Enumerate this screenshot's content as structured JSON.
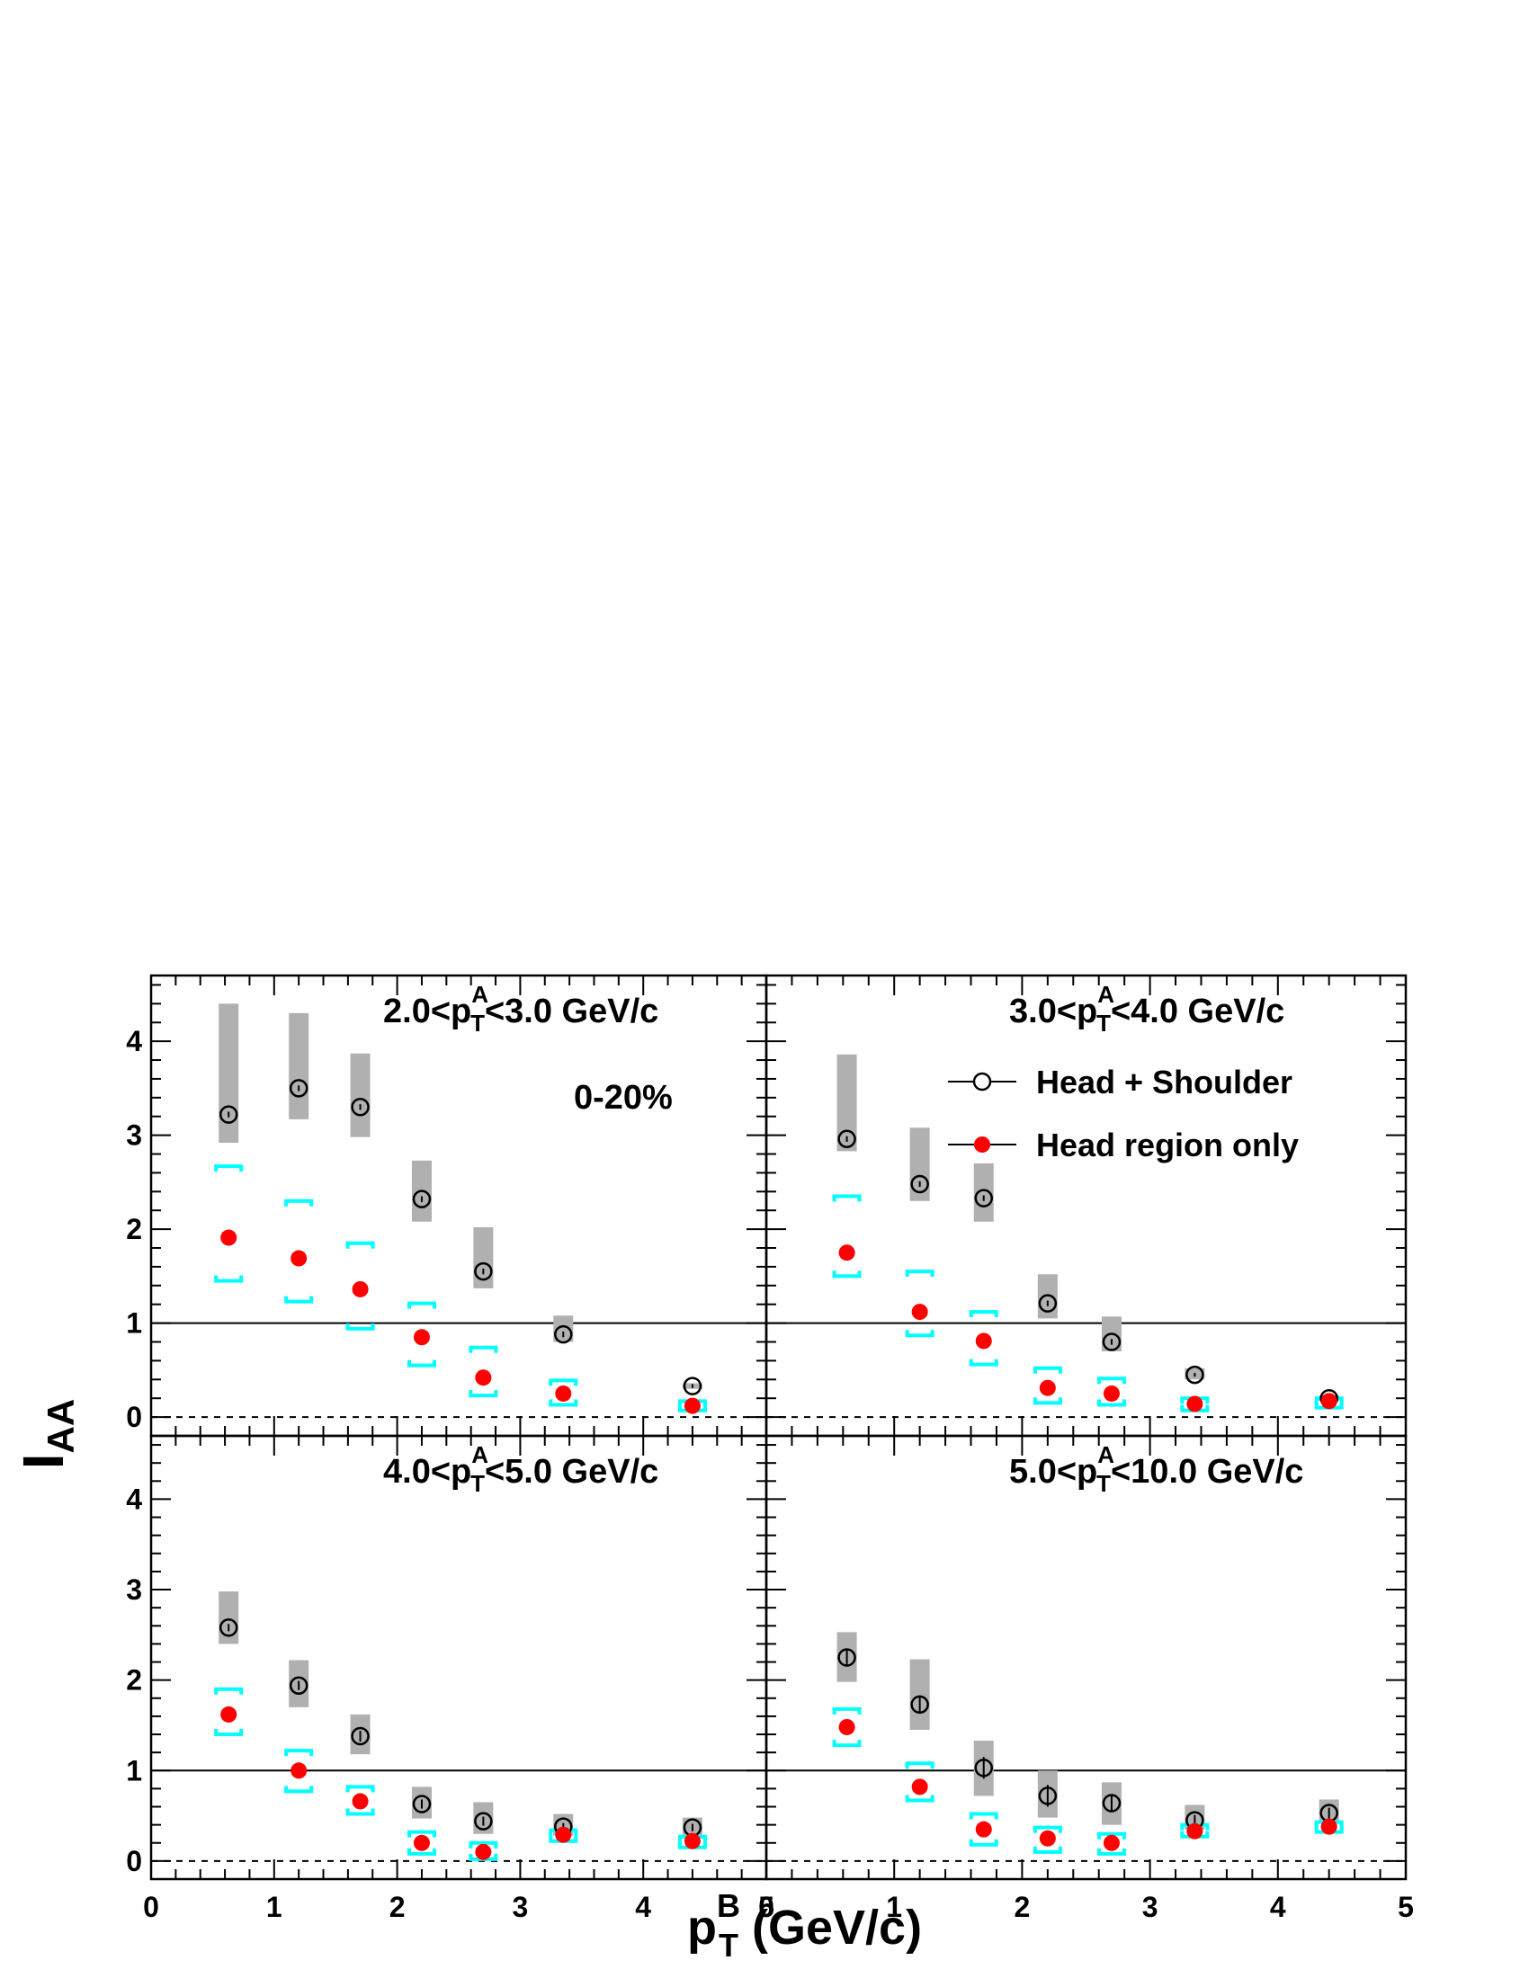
{
  "chart_data": {
    "type": "scatter",
    "xlabel": "p",
    "xlabel_sub": "T",
    "xlabel_sup": "B",
    "xlabel_unit": " (GeV/c)",
    "ylabel": "I",
    "ylabel_sub": "AA",
    "xlim": [
      0,
      5
    ],
    "ylim": [
      -0.2,
      4.7
    ],
    "x_ticks": [
      0,
      1,
      2,
      3,
      4,
      5
    ],
    "y_ticks": [
      0,
      1,
      2,
      3,
      4
    ],
    "reference_line": 1,
    "zero_line_style": "dashed",
    "centrality_label": "0-20%",
    "legend": [
      {
        "label": "Head + Shoulder",
        "marker": "open-circle"
      },
      {
        "label": "Head region only",
        "marker": "filled-circle"
      }
    ],
    "legend_placement": "top-right of upper-right panel",
    "colors": {
      "head_only": "#ff0000",
      "head_only_sys": "#00ffff",
      "head_shoulder_sys": "#b0b0b0",
      "head_shoulder": "#000000"
    },
    "panels": [
      {
        "label_prefix": "2.0<p",
        "label_sub": "T",
        "label_sup": "A",
        "label_suffix": "<3.0 GeV/c",
        "head_shoulder": {
          "x": [
            0.63,
            1.2,
            1.7,
            2.2,
            2.7,
            3.35,
            4.4
          ],
          "y": [
            3.22,
            3.5,
            3.3,
            2.32,
            1.55,
            0.88,
            0.33
          ],
          "sys_low": [
            2.92,
            3.17,
            2.98,
            2.08,
            1.37,
            0.8,
            0.3
          ],
          "sys_high": [
            4.4,
            4.3,
            3.87,
            2.73,
            2.02,
            1.08,
            0.36
          ],
          "err": [
            0.03,
            0.03,
            0.03,
            0.03,
            0.03,
            0.03,
            0.02
          ]
        },
        "head_only": {
          "x": [
            0.63,
            1.2,
            1.7,
            2.2,
            2.7,
            3.35,
            4.4
          ],
          "y": [
            1.91,
            1.69,
            1.36,
            0.85,
            0.42,
            0.25,
            0.12
          ],
          "sys_low": [
            1.45,
            1.23,
            0.94,
            0.55,
            0.23,
            0.13,
            0.07
          ],
          "sys_high": [
            2.67,
            2.3,
            1.85,
            1.21,
            0.74,
            0.39,
            0.17
          ]
        }
      },
      {
        "label_prefix": "3.0<p",
        "label_sub": "T",
        "label_sup": "A",
        "label_suffix": "<4.0 GeV/c",
        "head_shoulder": {
          "x": [
            0.63,
            1.2,
            1.7,
            2.2,
            2.7,
            3.35,
            4.4
          ],
          "y": [
            2.96,
            2.48,
            2.33,
            1.21,
            0.8,
            0.45,
            0.2
          ],
          "sys_low": [
            2.83,
            2.3,
            2.08,
            1.05,
            0.7,
            0.4,
            0.17
          ],
          "sys_high": [
            3.86,
            3.08,
            2.7,
            1.52,
            1.07,
            0.52,
            0.23
          ],
          "err": [
            0.03,
            0.03,
            0.03,
            0.03,
            0.03,
            0.02,
            0.02
          ]
        },
        "head_only": {
          "x": [
            0.63,
            1.2,
            1.7,
            2.2,
            2.7,
            3.35,
            4.4
          ],
          "y": [
            1.75,
            1.12,
            0.81,
            0.31,
            0.25,
            0.14,
            0.17
          ],
          "sys_low": [
            1.5,
            0.87,
            0.56,
            0.15,
            0.13,
            0.07,
            0.1
          ],
          "sys_high": [
            2.35,
            1.55,
            1.12,
            0.52,
            0.41,
            0.2,
            0.2
          ]
        }
      },
      {
        "label_prefix": "4.0<p",
        "label_sub": "T",
        "label_sup": "A",
        "label_suffix": "<5.0 GeV/c",
        "head_shoulder": {
          "x": [
            0.63,
            1.2,
            1.7,
            2.2,
            2.7,
            3.35,
            4.4
          ],
          "y": [
            2.58,
            1.94,
            1.38,
            0.63,
            0.44,
            0.38,
            0.37
          ],
          "sys_low": [
            2.4,
            1.7,
            1.18,
            0.47,
            0.3,
            0.28,
            0.25
          ],
          "sys_high": [
            2.98,
            2.22,
            1.62,
            0.82,
            0.65,
            0.52,
            0.48
          ],
          "err": [
            0.04,
            0.05,
            0.06,
            0.05,
            0.05,
            0.04,
            0.04
          ]
        },
        "head_only": {
          "x": [
            0.63,
            1.2,
            1.7,
            2.2,
            2.7,
            3.35,
            4.4
          ],
          "y": [
            1.62,
            1.0,
            0.66,
            0.2,
            0.1,
            0.29,
            0.22
          ],
          "sys_low": [
            1.4,
            0.77,
            0.52,
            0.08,
            0.02,
            0.22,
            0.15
          ],
          "sys_high": [
            1.9,
            1.22,
            0.82,
            0.32,
            0.2,
            0.34,
            0.27
          ]
        }
      },
      {
        "label_prefix": "5.0<p",
        "label_sub": "T",
        "label_sup": "A",
        "label_suffix": "<10.0 GeV/c",
        "head_shoulder": {
          "x": [
            0.63,
            1.2,
            1.7,
            2.2,
            2.7,
            3.35,
            4.4
          ],
          "y": [
            2.25,
            1.73,
            1.03,
            0.72,
            0.64,
            0.45,
            0.53
          ],
          "sys_low": [
            1.98,
            1.45,
            0.72,
            0.48,
            0.4,
            0.35,
            0.42
          ],
          "sys_high": [
            2.53,
            2.23,
            1.33,
            1.0,
            0.87,
            0.62,
            0.68
          ],
          "err": [
            0.08,
            0.1,
            0.12,
            0.12,
            0.1,
            0.06,
            0.06
          ]
        },
        "head_only": {
          "x": [
            0.63,
            1.2,
            1.7,
            2.2,
            2.7,
            3.35,
            4.4
          ],
          "y": [
            1.48,
            0.82,
            0.35,
            0.25,
            0.2,
            0.33,
            0.38
          ],
          "sys_low": [
            1.28,
            0.67,
            0.18,
            0.1,
            0.08,
            0.27,
            0.32
          ],
          "sys_high": [
            1.68,
            1.08,
            0.52,
            0.37,
            0.3,
            0.4,
            0.43
          ],
          "err": [
            0.07,
            0.07,
            0.07,
            0.06,
            0.05,
            0.04,
            0.04
          ]
        }
      }
    ]
  }
}
